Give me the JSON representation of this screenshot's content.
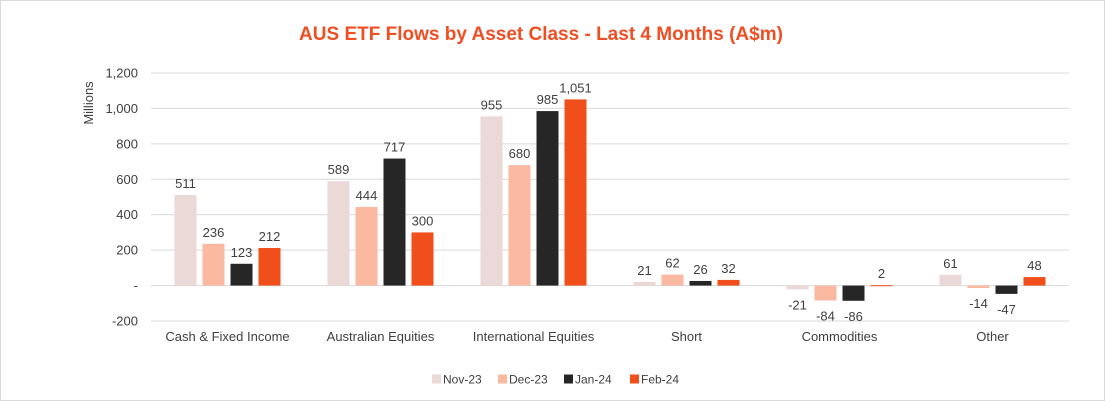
{
  "chart_data": {
    "type": "bar",
    "title": "AUS ETF Flows by Asset Class - Last 4 Months (A$m)",
    "ylabel": "Millions",
    "xlabel": "",
    "ylim": [
      -200,
      1200
    ],
    "yticks": [
      {
        "value": 1200,
        "label": "1,200"
      },
      {
        "value": 1000,
        "label": "1,000"
      },
      {
        "value": 800,
        "label": "800"
      },
      {
        "value": 600,
        "label": "600"
      },
      {
        "value": 400,
        "label": "400"
      },
      {
        "value": 200,
        "label": "200"
      },
      {
        "value": 0,
        "label": "-"
      },
      {
        "value": -200,
        "label": "-200"
      }
    ],
    "grid": true,
    "legend_position": "bottom",
    "categories": [
      "Cash & Fixed Income",
      "Australian Equities",
      "International Equities",
      "Short",
      "Commodities",
      "Other"
    ],
    "series": [
      {
        "name": "Nov-23",
        "color": "#ead9d6",
        "values": [
          511,
          589,
          955,
          21,
          -21,
          61
        ],
        "labels": [
          "511",
          "589",
          "955",
          "21",
          "-21",
          "61"
        ]
      },
      {
        "name": "Dec-23",
        "color": "#fbb9a1",
        "values": [
          236,
          444,
          680,
          62,
          -84,
          -14
        ],
        "labels": [
          "236",
          "444",
          "680",
          "62",
          "-84",
          "-14"
        ]
      },
      {
        "name": "Jan-24",
        "color": "#262626",
        "values": [
          123,
          717,
          985,
          26,
          -86,
          -47
        ],
        "labels": [
          "123",
          "717",
          "985",
          "26",
          "-86",
          "-47"
        ]
      },
      {
        "name": "Feb-24",
        "color": "#f04e1a",
        "values": [
          212,
          300,
          1051,
          32,
          2,
          48
        ],
        "labels": [
          "212",
          "300",
          "1,051",
          "32",
          "2",
          "48"
        ]
      }
    ]
  }
}
